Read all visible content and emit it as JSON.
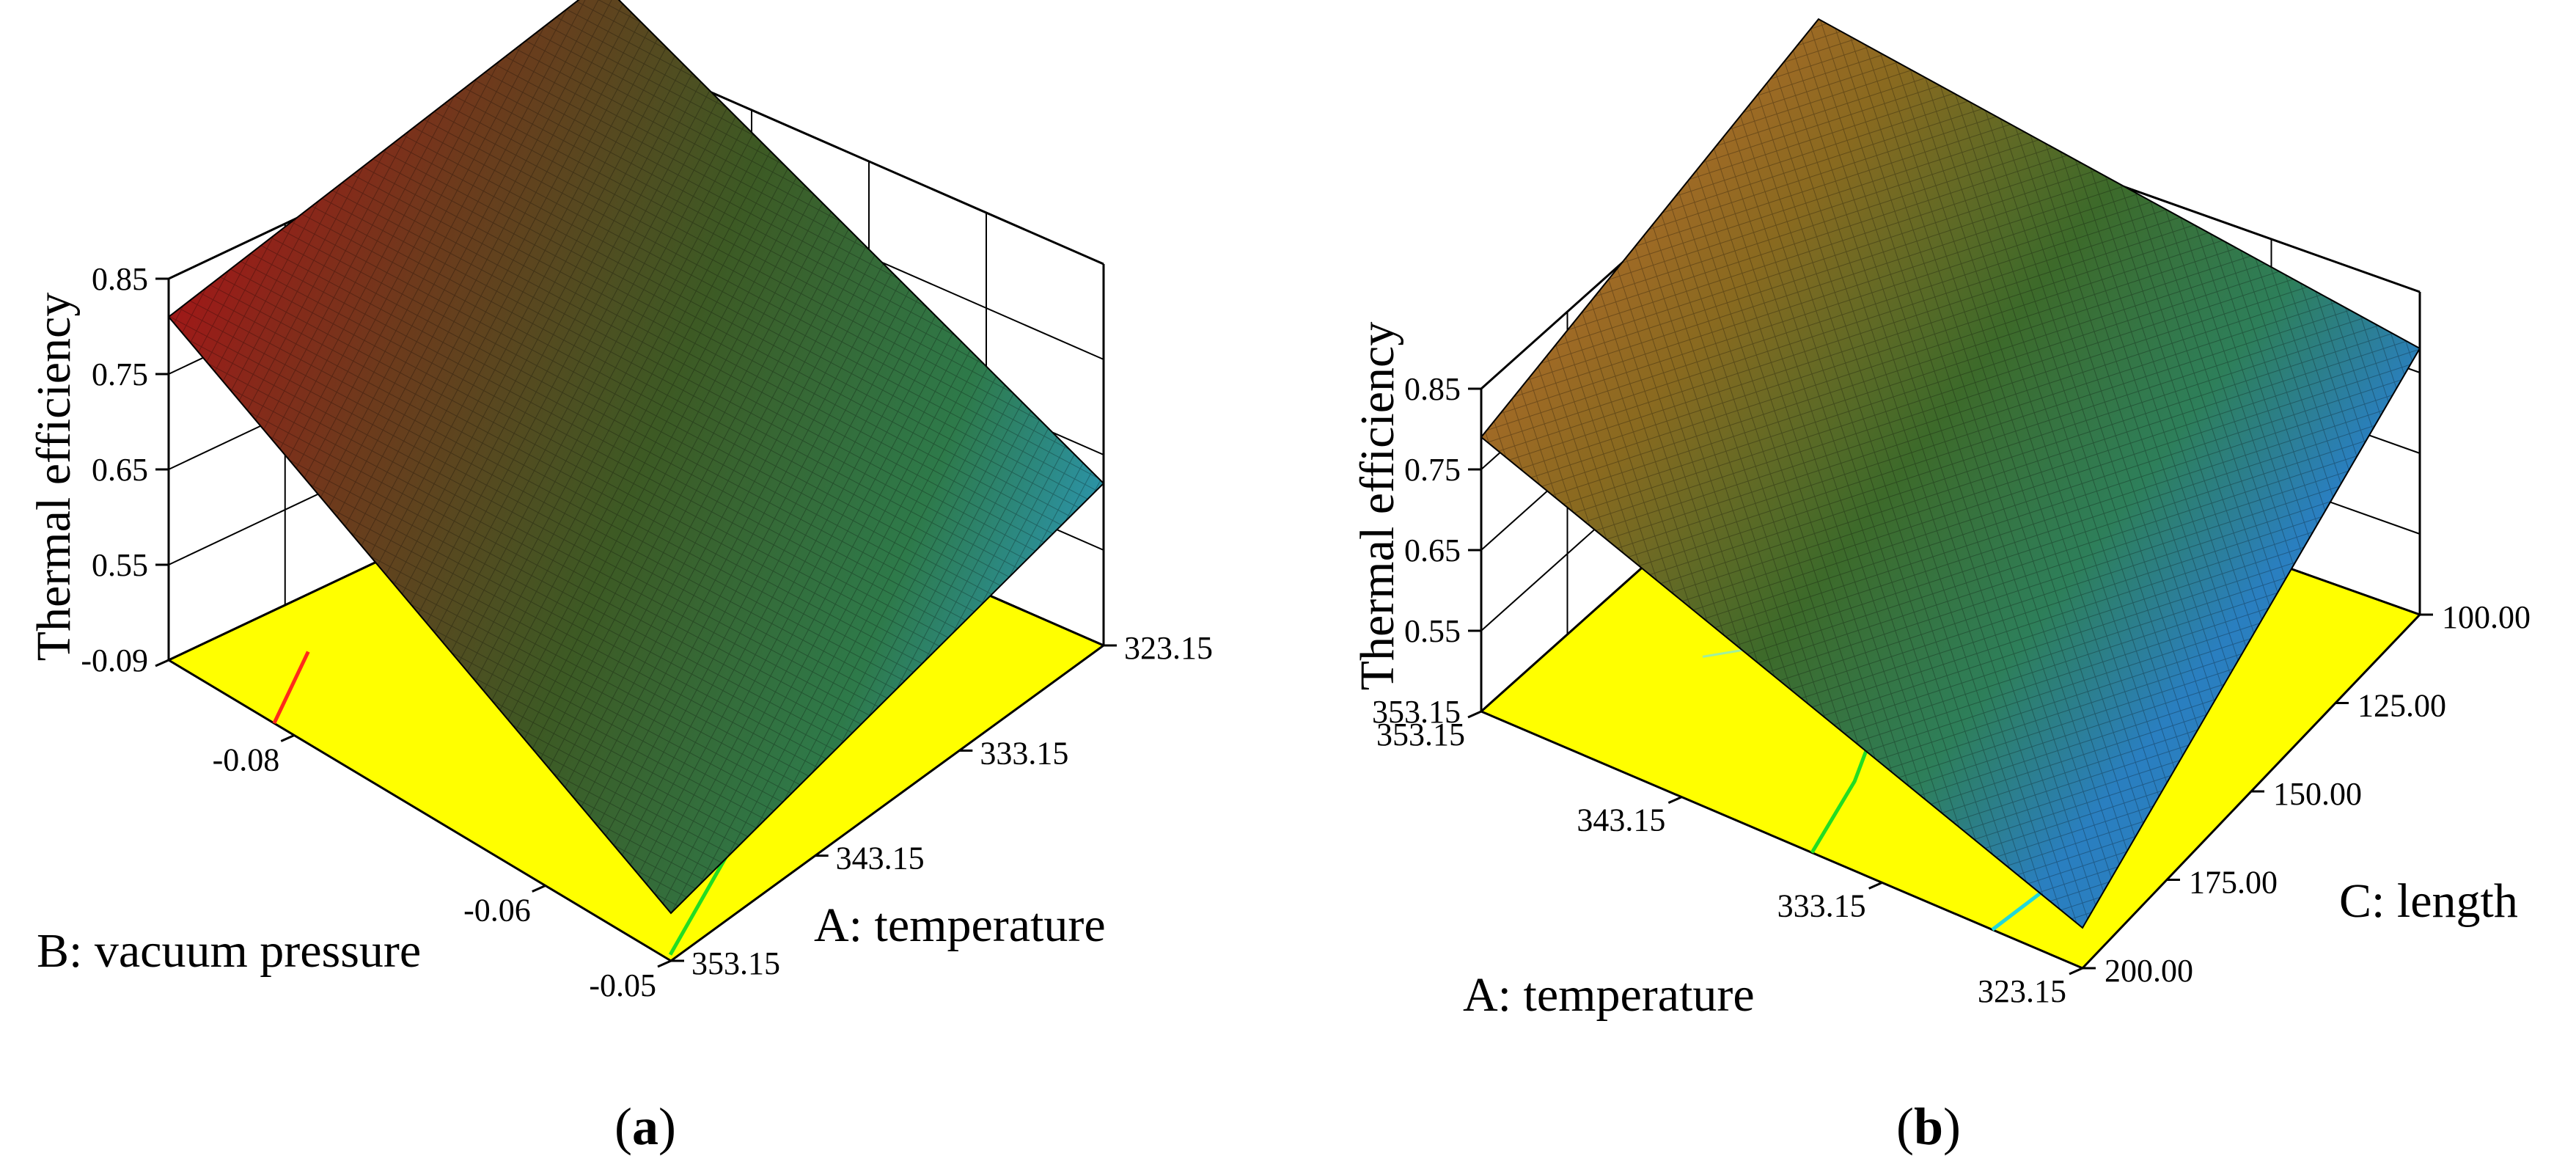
{
  "chart_data": [
    {
      "type": "surface",
      "panel_label": "a",
      "zlabel": "Thermal efficiency",
      "xlabel": "B: vacuum pressure",
      "ylabel": "A: temperature",
      "z_ticks": [
        "0.55",
        "0.65",
        "0.75",
        "0.85"
      ],
      "z_bottom_tick": "-0.09",
      "x_ticks": [
        "-0.09",
        "-0.08",
        "-0.06",
        "-0.05"
      ],
      "y_ticks": [
        "353.15",
        "343.15",
        "333.15",
        "323.15"
      ],
      "zlim": [
        0.45,
        0.85
      ],
      "xlim": [
        -0.09,
        -0.05
      ],
      "ylim": [
        323.15,
        353.15
      ],
      "surface_corners": [
        {
          "x": -0.09,
          "y": 353.15,
          "z": 0.81
        },
        {
          "x": -0.09,
          "y": 323.15,
          "z": 0.83
        },
        {
          "x": -0.05,
          "y": 323.15,
          "z": 0.62
        },
        {
          "x": -0.05,
          "y": 353.15,
          "z": 0.5
        }
      ],
      "colormap": [
        "#2a7fc0",
        "#2e8f5a",
        "#3d6a2a",
        "#6e3a1c",
        "#a01818"
      ],
      "floor_color": "#ffff00"
    },
    {
      "type": "surface",
      "panel_label": "b",
      "zlabel": "Thermal efficiency",
      "xlabel": "A: temperature",
      "ylabel": "C: length",
      "z_ticks": [
        "0.55",
        "0.65",
        "0.75",
        "0.85"
      ],
      "z_bottom_tick": "353.15",
      "x_ticks": [
        "353.15",
        "343.15",
        "333.15",
        "323.15"
      ],
      "y_ticks": [
        "200.00",
        "175.00",
        "150.00",
        "125.00",
        "100.00"
      ],
      "zlim": [
        0.45,
        0.85
      ],
      "xlim": [
        323.15,
        353.15
      ],
      "ylim": [
        100.0,
        200.0
      ],
      "surface_corners": [
        {
          "x": 353.15,
          "y": 200.0,
          "z": 0.79
        },
        {
          "x": 353.15,
          "y": 100.0,
          "z": 0.87
        },
        {
          "x": 323.15,
          "y": 100.0,
          "z": 0.78
        },
        {
          "x": 323.15,
          "y": 200.0,
          "z": 0.5
        }
      ],
      "colormap": [
        "#2a7fc0",
        "#2e8f5a",
        "#3d6a2a",
        "#8a6a20",
        "#b06a2a"
      ],
      "floor_color": "#ffff00"
    }
  ]
}
